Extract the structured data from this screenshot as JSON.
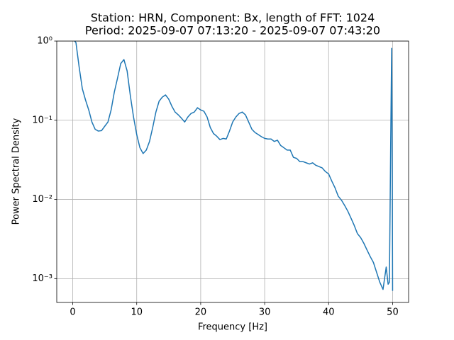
{
  "chart_data": {
    "type": "line",
    "title": [
      "Station: HRN, Component: Bx, length of FFT: 1024",
      "Period: 2025-09-07 07:13:20 - 2025-09-07 07:43:20"
    ],
    "xlabel": "Frequency [Hz]",
    "ylabel": "Power Spectral Density",
    "x": [
      0.3,
      0.5,
      1.0,
      1.5,
      2.0,
      2.5,
      3.0,
      3.5,
      4.0,
      4.5,
      5.0,
      5.5,
      6.0,
      6.5,
      7.0,
      7.5,
      8.0,
      8.5,
      9.0,
      9.5,
      10.0,
      10.5,
      11.0,
      11.5,
      12.0,
      12.5,
      13.0,
      13.5,
      14.0,
      14.5,
      15.0,
      15.5,
      16.0,
      16.5,
      17.0,
      17.5,
      18.0,
      18.5,
      19.0,
      19.5,
      20.0,
      20.5,
      21.0,
      21.5,
      22.0,
      22.5,
      23.0,
      23.5,
      24.0,
      24.5,
      25.0,
      25.5,
      26.0,
      26.5,
      27.0,
      27.5,
      28.0,
      28.5,
      29.0,
      29.5,
      30.0,
      30.5,
      31.0,
      31.5,
      32.0,
      32.5,
      33.0,
      33.5,
      34.0,
      34.5,
      35.0,
      35.5,
      36.0,
      36.5,
      37.0,
      37.5,
      38.0,
      38.5,
      39.0,
      39.5,
      40.0,
      40.5,
      41.0,
      41.5,
      42.0,
      42.5,
      43.0,
      43.5,
      44.0,
      44.5,
      45.0,
      45.5,
      46.0,
      46.5,
      47.0,
      47.5,
      48.0,
      48.5,
      49.0,
      49.3,
      49.5,
      49.7,
      49.85,
      49.95,
      50.0
    ],
    "series": [
      {
        "name": "Bx",
        "color": "#1f77b4",
        "values": [
          1.0,
          0.96,
          0.47,
          0.25,
          0.18,
          0.135,
          0.095,
          0.077,
          0.073,
          0.074,
          0.084,
          0.095,
          0.135,
          0.227,
          0.34,
          0.52,
          0.585,
          0.42,
          0.205,
          0.11,
          0.066,
          0.045,
          0.038,
          0.042,
          0.054,
          0.081,
          0.127,
          0.174,
          0.196,
          0.209,
          0.185,
          0.15,
          0.127,
          0.117,
          0.106,
          0.095,
          0.11,
          0.122,
          0.127,
          0.144,
          0.135,
          0.13,
          0.11,
          0.081,
          0.068,
          0.063,
          0.057,
          0.059,
          0.058,
          0.073,
          0.095,
          0.11,
          0.122,
          0.127,
          0.117,
          0.095,
          0.077,
          0.07,
          0.066,
          0.062,
          0.059,
          0.058,
          0.058,
          0.054,
          0.056,
          0.048,
          0.045,
          0.042,
          0.042,
          0.034,
          0.033,
          0.03,
          0.03,
          0.029,
          0.028,
          0.029,
          0.027,
          0.026,
          0.025,
          0.0225,
          0.021,
          0.017,
          0.014,
          0.011,
          0.0098,
          0.0084,
          0.0071,
          0.0058,
          0.0047,
          0.0037,
          0.0033,
          0.0028,
          0.0023,
          0.0019,
          0.0016,
          0.0012,
          0.0009,
          0.00073,
          0.0014,
          0.00085,
          0.0009,
          0.05,
          0.81,
          0.02,
          0.0007
        ]
      }
    ],
    "xlim": [
      -2.5,
      52.5
    ],
    "xticks": [
      0,
      10,
      20,
      30,
      40,
      50
    ],
    "ylim": [
      0.0005,
      1
    ],
    "ylog": true,
    "yticks": [
      {
        "value": 1,
        "label": "10⁰"
      },
      {
        "value": 0.1,
        "label": "10⁻¹"
      },
      {
        "value": 0.01,
        "label": "10⁻²"
      },
      {
        "value": 0.001,
        "label": "10⁻³"
      }
    ],
    "grid": true
  }
}
